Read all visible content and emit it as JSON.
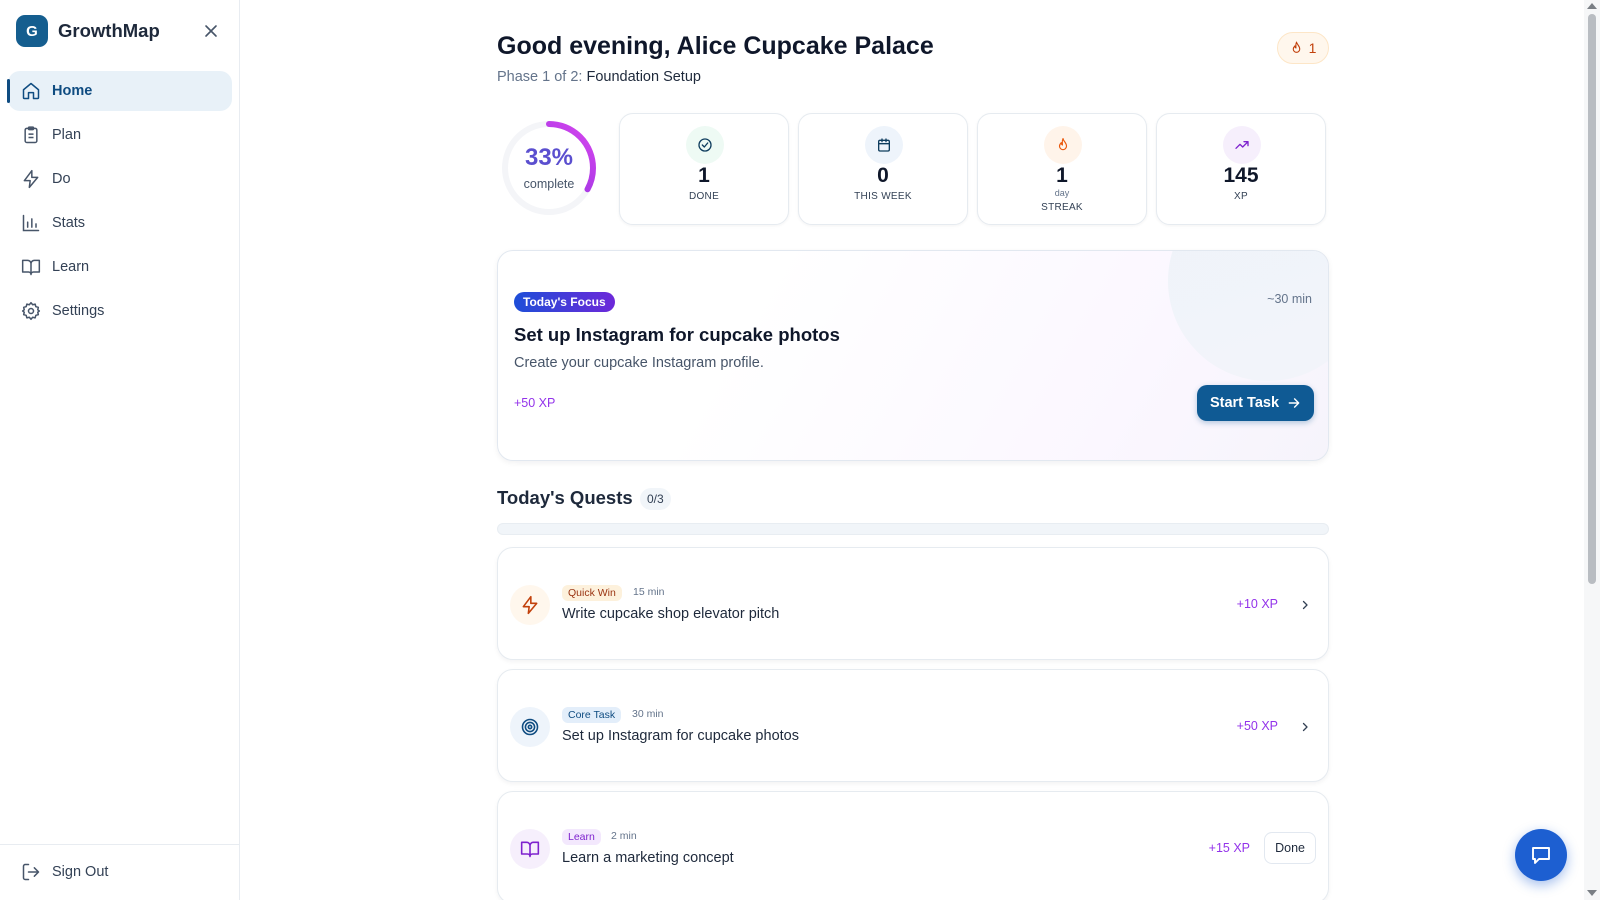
{
  "brand": {
    "logo_letter": "G",
    "name": "GrowthMap"
  },
  "sidebar": {
    "items": [
      {
        "label": "Home",
        "icon": "home-icon",
        "active": true
      },
      {
        "label": "Plan",
        "icon": "clipboard-icon"
      },
      {
        "label": "Do",
        "icon": "lightning-icon"
      },
      {
        "label": "Stats",
        "icon": "bar-chart-icon"
      },
      {
        "label": "Learn",
        "icon": "book-icon"
      },
      {
        "label": "Settings",
        "icon": "gear-icon"
      }
    ],
    "sign_out_label": "Sign Out"
  },
  "header": {
    "greeting": "Good evening, Alice Cupcake Palace",
    "phase_prefix": "Phase 1 of 2:",
    "phase_name": "Foundation Setup",
    "streak_value": "1"
  },
  "progress": {
    "percent_label": "33%",
    "fraction": 0.33,
    "label": "complete"
  },
  "stats": [
    {
      "value": "1",
      "label": "DONE",
      "icon": "check-circle-icon"
    },
    {
      "value": "0",
      "label": "THIS WEEK",
      "icon": "calendar-icon"
    },
    {
      "value": "1",
      "sub": "day",
      "label": "STREAK",
      "icon": "flame-icon"
    },
    {
      "value": "145",
      "label": "XP",
      "icon": "trending-up-icon"
    }
  ],
  "focus": {
    "badge": "Today's Focus",
    "time": "~30 min",
    "title": "Set up Instagram for cupcake photos",
    "description": "Create your cupcake Instagram profile.",
    "xp": "+50 XP",
    "button_label": "Start Task"
  },
  "quests": {
    "title": "Today's Quests",
    "count": "0/3",
    "progress_fraction": 0,
    "items": [
      {
        "tag": "Quick Win",
        "duration": "15 min",
        "title": "Write cupcake shop elevator pitch",
        "xp": "+10 XP",
        "icon": "lightning-icon",
        "action": "chevron"
      },
      {
        "tag": "Core Task",
        "duration": "30 min",
        "title": "Set up Instagram for cupcake photos",
        "xp": "+50 XP",
        "icon": "target-icon",
        "action": "chevron"
      },
      {
        "tag": "Learn",
        "duration": "2 min",
        "title": "Learn a marketing concept",
        "xp": "+15 XP",
        "icon": "book-icon",
        "action": "done",
        "action_label": "Done"
      }
    ]
  },
  "colors": {
    "primary": "#0f5a94",
    "accent_purple": "#9333ea",
    "progress_ring": "#c026d3",
    "chat_button": "#1d5fd1"
  }
}
